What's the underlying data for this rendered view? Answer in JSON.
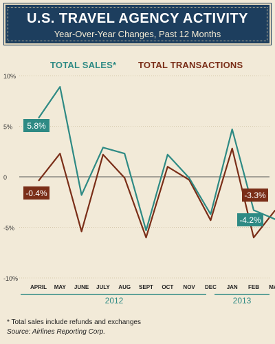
{
  "header": {
    "title": "U.S. TRAVEL AGENCY ACTIVITY",
    "subtitle": "Year-Over-Year Changes, Past 12 Months"
  },
  "colors": {
    "sales": "#2e8a84",
    "transactions": "#7a2e18",
    "header_bg": "#1d3e5e"
  },
  "chart_data": {
    "type": "line",
    "categories": [
      "APRIL",
      "MAY",
      "JUNE",
      "JULY",
      "AUG",
      "SEPT",
      "OCT",
      "NOV",
      "DEC",
      "JAN",
      "FEB",
      "MAR"
    ],
    "year_labels": [
      "2012",
      "2013"
    ],
    "ylim": [
      -10,
      10
    ],
    "yticks": [
      "10%",
      "5%",
      "0",
      "-5%",
      "-10%"
    ],
    "series": [
      {
        "name": "TOTAL SALES*",
        "values": [
          5.8,
          8.9,
          -1.8,
          2.9,
          2.3,
          -5.3,
          2.2,
          -0.1,
          -3.7,
          4.7,
          -3.3,
          -4.2
        ],
        "callouts": [
          {
            "index": 0,
            "label": "5.8%"
          },
          {
            "index": 11,
            "label": "-4.2%"
          }
        ]
      },
      {
        "name": "TOTAL TRANSACTIONS",
        "values": [
          -0.4,
          2.3,
          -5.4,
          2.2,
          -0.1,
          -6.0,
          1.0,
          -0.3,
          -4.3,
          2.8,
          -6.0,
          -3.3
        ],
        "callouts": [
          {
            "index": 0,
            "label": "-0.4%"
          },
          {
            "index": 11,
            "label": "-3.3%"
          }
        ]
      }
    ]
  },
  "footnotes": {
    "note": "* Total sales include refunds and exchanges",
    "source": "Source: Airlines Reporting Corp."
  }
}
